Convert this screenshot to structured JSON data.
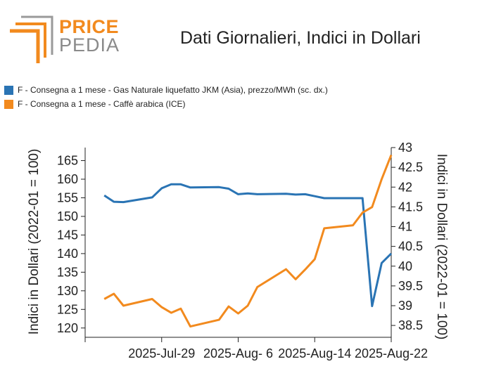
{
  "brand": {
    "word1": "PRICE",
    "word2": "PEDIA"
  },
  "colors": {
    "series_jkm": "#2a74b4",
    "series_coffee": "#f28a1e",
    "logo_orange": "#f28a1e",
    "logo_gray": "#9a9a9a"
  },
  "chart_data": {
    "type": "line",
    "title": "Dati Giornalieri, Indici in Dollari",
    "legend_placement": "top-left",
    "grid": false,
    "x_start": "2025-07-23",
    "x_tick_labels": [
      "2025-Jul-29",
      "2025-Aug- 6",
      "2025-Aug-14",
      "2025-Aug-22"
    ],
    "y_left": {
      "label": "Indici in Dollari (2022-01 = 100)",
      "ticks": [
        "120",
        "125",
        "130",
        "135",
        "140",
        "145",
        "150",
        "155",
        "160",
        "165"
      ],
      "range": [
        117.5,
        168.5
      ]
    },
    "y_right": {
      "label": "Indici in Dollari (2022-01 = 100)",
      "ticks": [
        "38.5",
        "39",
        "39.5",
        "40",
        "40.5",
        "41",
        "41.5",
        "42",
        "42.5",
        "43"
      ],
      "range": [
        38.2,
        43
      ]
    },
    "series": [
      {
        "name": "F - Consegna a 1 mese - Gas Naturale liquefatto JKM (Asia), prezzo/MWh (sc. dx.)",
        "axis": "right",
        "x": [
          "2025-07-23",
          "2025-07-24",
          "2025-07-25",
          "2025-07-28",
          "2025-07-29",
          "2025-07-30",
          "2025-07-31",
          "2025-08-01",
          "2025-08-04",
          "2025-08-05",
          "2025-08-06",
          "2025-08-07",
          "2025-08-08",
          "2025-08-11",
          "2025-08-12",
          "2025-08-13",
          "2025-08-14",
          "2025-08-15",
          "2025-08-18",
          "2025-08-19",
          "2025-08-20",
          "2025-08-21",
          "2025-08-22"
        ],
        "values": [
          41.79,
          41.63,
          41.62,
          41.74,
          41.97,
          42.07,
          42.07,
          41.99,
          42.0,
          41.96,
          41.82,
          41.84,
          41.82,
          41.83,
          41.81,
          41.82,
          41.77,
          41.72,
          41.72,
          41.72,
          38.99,
          40.08,
          40.32
        ]
      },
      {
        "name": "F - Consegna a 1 mese - Caffè arabica (ICE)",
        "axis": "left",
        "x": [
          "2025-07-23",
          "2025-07-24",
          "2025-07-25",
          "2025-07-28",
          "2025-07-29",
          "2025-07-30",
          "2025-07-31",
          "2025-08-01",
          "2025-08-04",
          "2025-08-05",
          "2025-08-06",
          "2025-08-07",
          "2025-08-08",
          "2025-08-11",
          "2025-08-12",
          "2025-08-13",
          "2025-08-14",
          "2025-08-15",
          "2025-08-18",
          "2025-08-19",
          "2025-08-20",
          "2025-08-21",
          "2025-08-22"
        ],
        "values": [
          127.8,
          129.2,
          126.0,
          127.8,
          125.6,
          124.1,
          125.2,
          120.4,
          122.2,
          125.8,
          123.9,
          126.0,
          131.0,
          135.8,
          133.1,
          135.7,
          138.5,
          146.8,
          147.6,
          151.0,
          152.5,
          160.0,
          166.5
        ]
      }
    ]
  }
}
